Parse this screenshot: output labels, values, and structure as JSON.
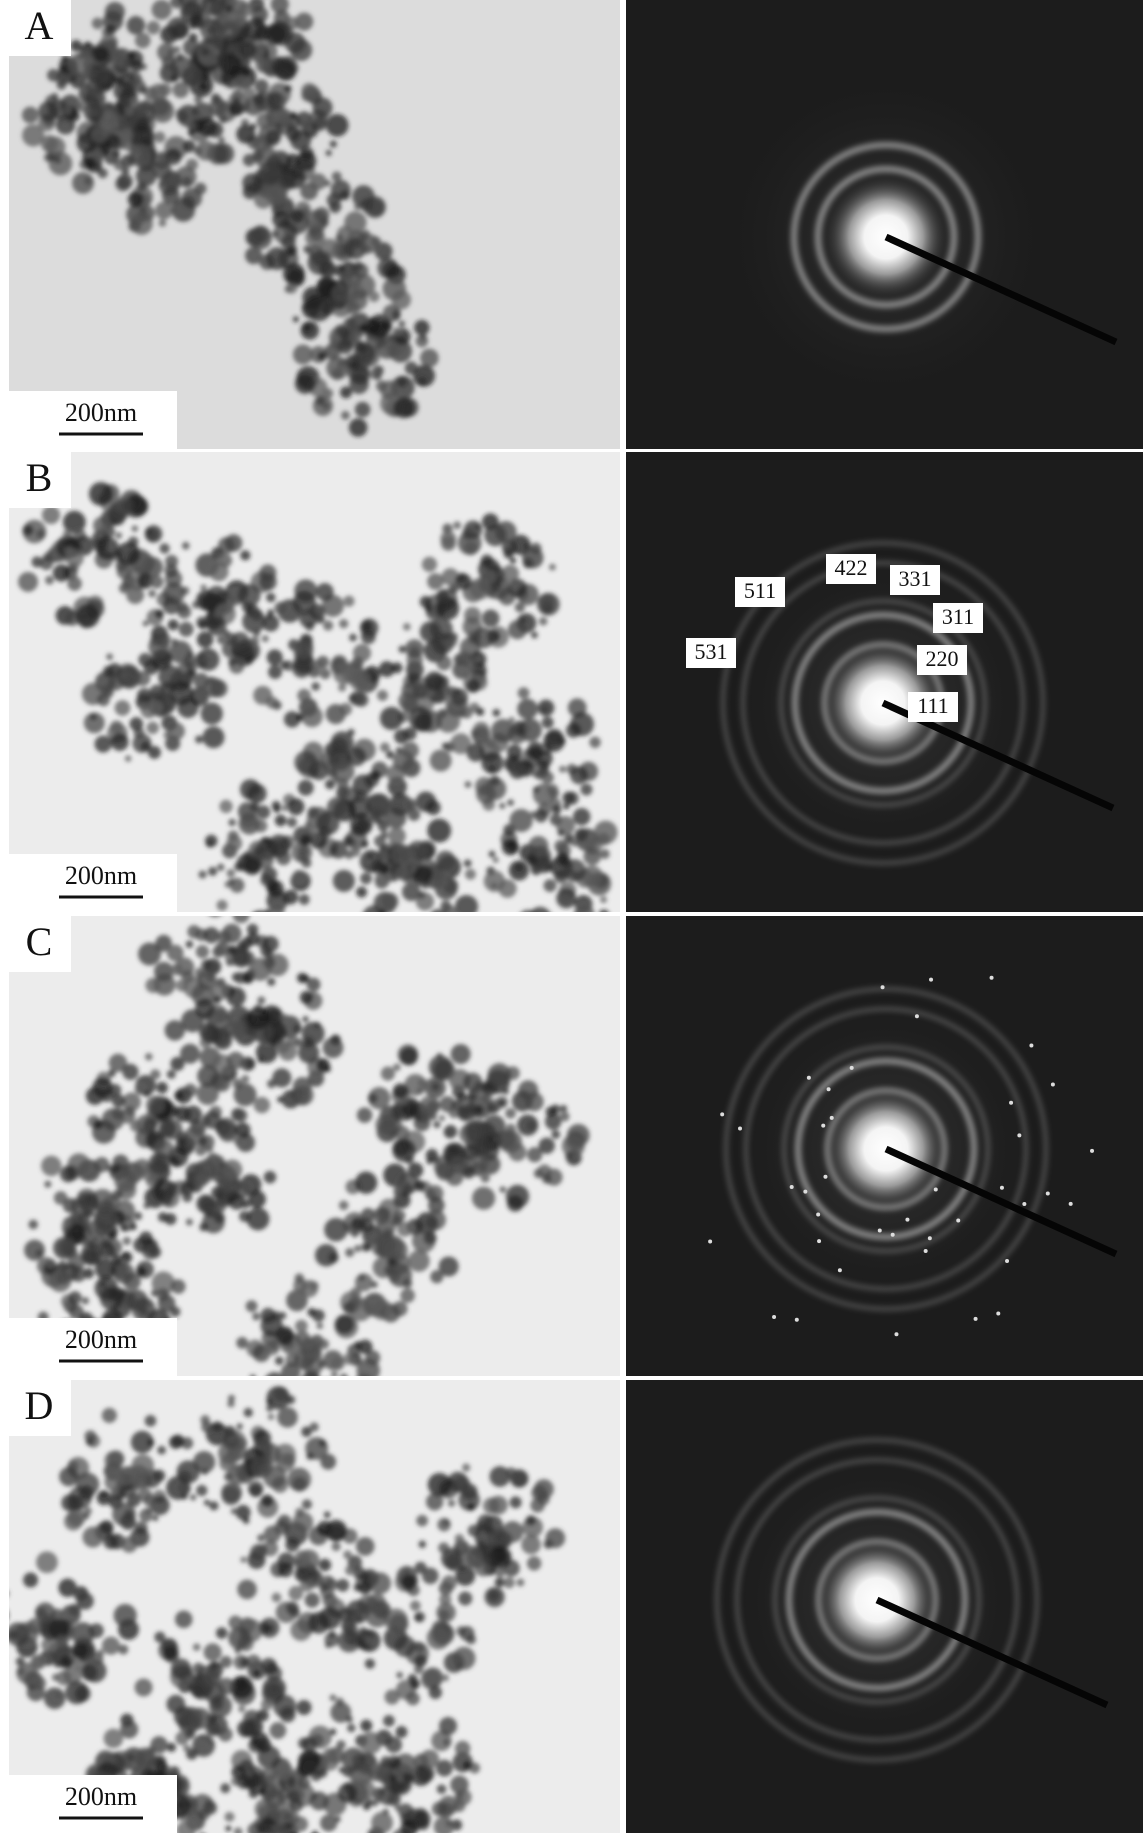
{
  "panels": [
    {
      "label": "A",
      "scale_bar": "200nm"
    },
    {
      "label": "B",
      "scale_bar": "200nm"
    },
    {
      "label": "C",
      "scale_bar": "200nm"
    },
    {
      "label": "D",
      "scale_bar": "200nm"
    }
  ],
  "diffraction_labels": [
    "111",
    "220",
    "311",
    "331",
    "422",
    "511",
    "531"
  ]
}
